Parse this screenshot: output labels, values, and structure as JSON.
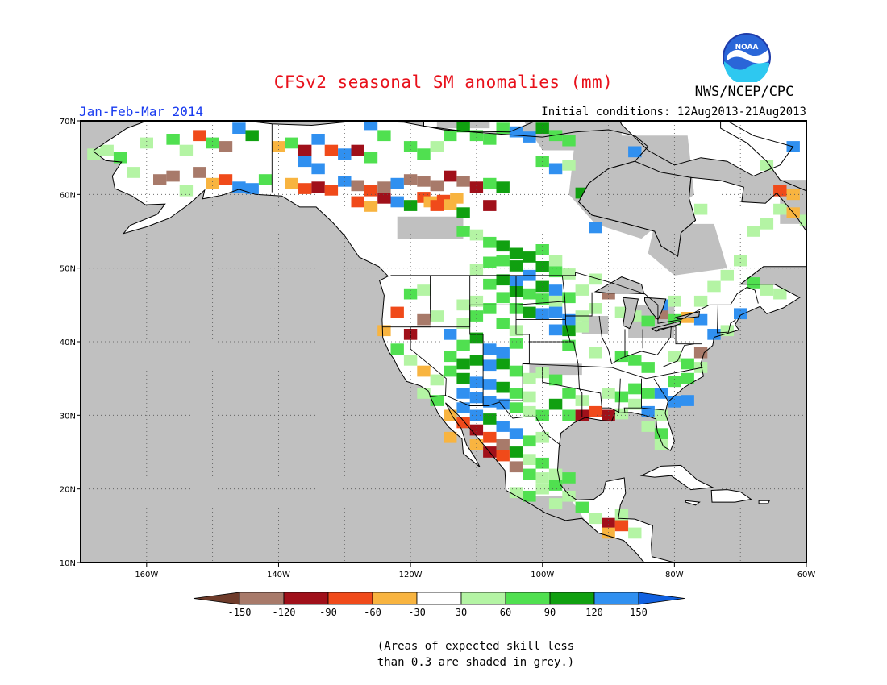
{
  "title": "CFSv2 seasonal SM anomalies (mm)",
  "period": "Jan-Feb-Mar 2014",
  "initial_conditions": "Initial conditions: 12Aug2013-21Aug2013",
  "agency": "NWS/NCEP/CPC",
  "logo_text": "NOAA",
  "note_line1": "(Areas of expected skill less",
  "note_line2": "than 0.3 are shaded in grey.)",
  "map": {
    "lon_range": [
      -170,
      -60
    ],
    "lat_range": [
      10,
      70
    ],
    "lon_ticks": [
      "160W",
      "140W",
      "120W",
      "100W",
      "80W",
      "60W"
    ],
    "lat_ticks": [
      "10N",
      "20N",
      "30N",
      "40N",
      "50N",
      "60N",
      "70N"
    ],
    "colors": {
      "grey_mask": "#c0c0c0",
      "coast": "#000000",
      "frame": "#000000"
    }
  },
  "legend": {
    "labels": [
      "-150",
      "-120",
      "-90",
      "-60",
      "-30",
      "30",
      "60",
      "90",
      "120",
      "150"
    ],
    "colors": [
      "#6e3b2a",
      "#a87a6a",
      "#a0101a",
      "#f04a1a",
      "#f8b440",
      "#ffffff",
      "#b4f4a4",
      "#50e050",
      "#10a010",
      "#3090f0",
      "#1060e0"
    ]
  }
}
